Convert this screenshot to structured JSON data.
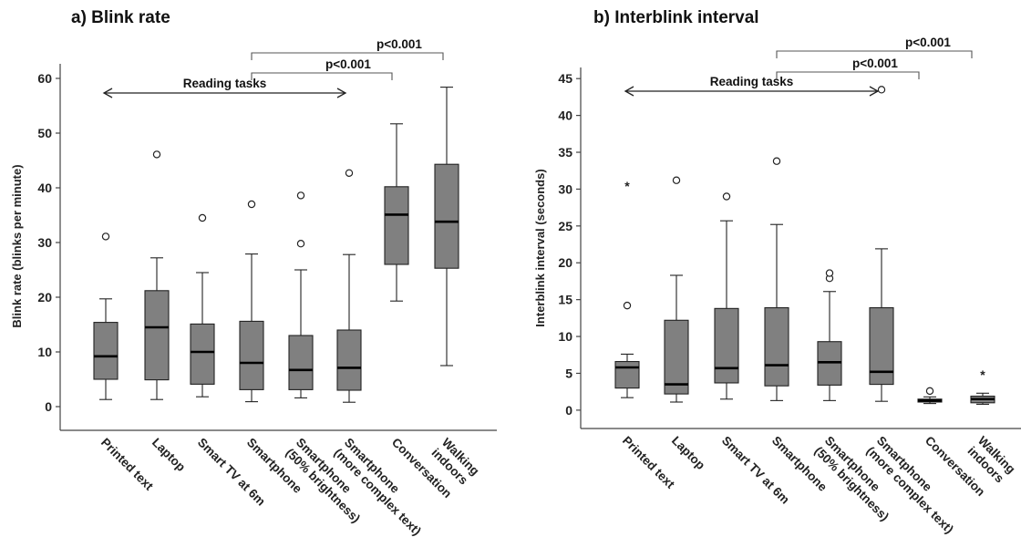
{
  "chart_data": [
    {
      "type": "box",
      "panel_title": "a) Blink rate",
      "ylabel": "Blink rate (blinks per minute)",
      "ylim": [
        -3,
        64
      ],
      "yticks": [
        "0",
        "10",
        "20",
        "30",
        "40",
        "50",
        "60"
      ],
      "ytick_values": [
        0,
        10,
        20,
        30,
        40,
        50,
        60
      ],
      "categories": [
        [
          "Printed text"
        ],
        [
          "Laptop"
        ],
        [
          "Smart TV at 6m"
        ],
        [
          "Smartphone"
        ],
        [
          "Smartphone",
          "(50% brightness)"
        ],
        [
          "Smartphone",
          "(more complex text)"
        ],
        [
          "Conversation"
        ],
        [
          "Walking",
          "indoors"
        ]
      ],
      "boxes": [
        {
          "min": 1.3,
          "q1": 5.0,
          "median": 9.2,
          "q3": 15.4,
          "max": 19.7,
          "outliers": [
            {
              "v": 31.1,
              "mark": "o"
            }
          ]
        },
        {
          "min": 1.3,
          "q1": 4.9,
          "median": 14.5,
          "q3": 21.2,
          "max": 27.2,
          "outliers": [
            {
              "v": 46.1,
              "mark": "o"
            }
          ]
        },
        {
          "min": 1.8,
          "q1": 4.1,
          "median": 10.0,
          "q3": 15.1,
          "max": 24.5,
          "outliers": [
            {
              "v": 34.5,
              "mark": "o"
            }
          ]
        },
        {
          "min": 0.9,
          "q1": 3.1,
          "median": 8.0,
          "q3": 15.6,
          "max": 27.9,
          "outliers": [
            {
              "v": 37.0,
              "mark": "o"
            }
          ]
        },
        {
          "min": 1.6,
          "q1": 3.1,
          "median": 6.7,
          "q3": 13.0,
          "max": 25.0,
          "outliers": [
            {
              "v": 29.8,
              "mark": "o"
            },
            {
              "v": 38.6,
              "mark": "o"
            }
          ]
        },
        {
          "min": 0.8,
          "q1": 3.0,
          "median": 7.1,
          "q3": 14.0,
          "max": 27.8,
          "outliers": [
            {
              "v": 42.7,
              "mark": "o"
            }
          ]
        },
        {
          "min": 19.3,
          "q1": 26.0,
          "median": 35.1,
          "q3": 40.2,
          "max": 51.7,
          "outliers": []
        },
        {
          "min": 7.5,
          "q1": 25.3,
          "median": 33.8,
          "q3": 44.3,
          "max": 58.4,
          "outliers": []
        }
      ],
      "annotations": {
        "reading_tasks": {
          "label": "Reading tasks",
          "from_category": 0,
          "to_category": 5
        },
        "brackets": [
          {
            "label": "p<0.001",
            "from_category": 3,
            "to_category": 6
          },
          {
            "label": "p<0.001",
            "from_category": 3,
            "to_category": 7
          }
        ]
      }
    },
    {
      "type": "box",
      "panel_title": "b) Interblink interval",
      "ylabel": "Interblink interval (seconds)",
      "ylim": [
        -1.5,
        47.5
      ],
      "yticks": [
        "0",
        "5",
        "10",
        "15",
        "20",
        "25",
        "30",
        "35",
        "40",
        "45"
      ],
      "ytick_values": [
        0,
        5,
        10,
        15,
        20,
        25,
        30,
        35,
        40,
        45
      ],
      "categories": [
        [
          "Printed text"
        ],
        [
          "Laptop"
        ],
        [
          "Smart TV at 6m"
        ],
        [
          "Smartphone"
        ],
        [
          "Smartphone",
          "(50% brightness)"
        ],
        [
          "Smartphone",
          "(more complex text)"
        ],
        [
          "Conversation"
        ],
        [
          "Walking",
          "indoors"
        ]
      ],
      "boxes": [
        {
          "min": 1.7,
          "q1": 3.0,
          "median": 5.8,
          "q3": 6.6,
          "max": 7.6,
          "outliers": [
            {
              "v": 14.2,
              "mark": "o"
            },
            {
              "v": 30.8,
              "mark": "*"
            }
          ]
        },
        {
          "min": 1.1,
          "q1": 2.2,
          "median": 3.5,
          "q3": 12.2,
          "max": 18.3,
          "outliers": [
            {
              "v": 31.2,
              "mark": "o"
            }
          ]
        },
        {
          "min": 1.5,
          "q1": 3.7,
          "median": 5.7,
          "q3": 13.8,
          "max": 25.7,
          "outliers": [
            {
              "v": 29.0,
              "mark": "o"
            }
          ]
        },
        {
          "min": 1.3,
          "q1": 3.3,
          "median": 6.1,
          "q3": 13.9,
          "max": 25.2,
          "outliers": [
            {
              "v": 33.8,
              "mark": "o"
            }
          ]
        },
        {
          "min": 1.3,
          "q1": 3.4,
          "median": 6.5,
          "q3": 9.3,
          "max": 16.1,
          "outliers": [
            {
              "v": 17.9,
              "mark": "o"
            },
            {
              "v": 18.6,
              "mark": "o"
            }
          ]
        },
        {
          "min": 1.2,
          "q1": 3.5,
          "median": 5.2,
          "q3": 13.9,
          "max": 21.9,
          "outliers": [
            {
              "v": 43.5,
              "mark": "o"
            }
          ]
        },
        {
          "min": 0.9,
          "q1": 1.1,
          "median": 1.3,
          "q3": 1.5,
          "max": 1.8,
          "outliers": [
            {
              "v": 2.6,
              "mark": "o"
            }
          ]
        },
        {
          "min": 0.8,
          "q1": 1.0,
          "median": 1.5,
          "q3": 1.9,
          "max": 2.3,
          "outliers": [
            {
              "v": 5.2,
              "mark": "*"
            }
          ]
        }
      ],
      "annotations": {
        "reading_tasks": {
          "label": "Reading tasks",
          "from_category": 0,
          "to_category": 5
        },
        "brackets": [
          {
            "label": "p<0.001",
            "from_category": 3,
            "to_category": 6
          },
          {
            "label": "p<0.001",
            "from_category": 3,
            "to_category": 7
          }
        ]
      }
    }
  ]
}
